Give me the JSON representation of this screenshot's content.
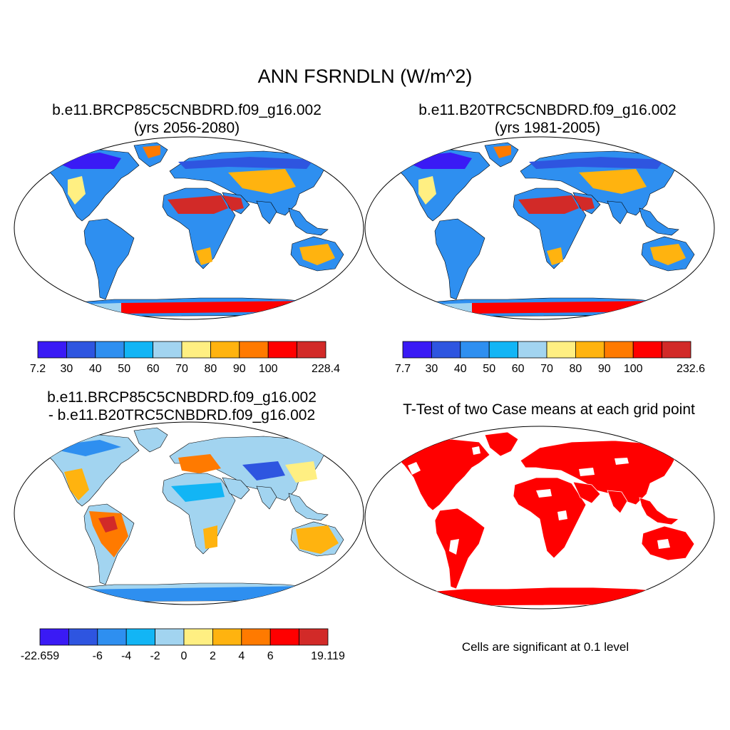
{
  "title": "ANN FSRNDLN (W/m^2)",
  "panels": [
    {
      "id": "p1",
      "title_line1": "b.e11.BRCP85C5CNBDRD.f09_g16.002",
      "title_line2": "(yrs 2056-2080)",
      "colorbar_labels": [
        "7.2",
        "30",
        "40",
        "50",
        "60",
        "70",
        "80",
        "90",
        "100",
        "228.4"
      ]
    },
    {
      "id": "p2",
      "title_line1": "b.e11.B20TRC5CNBDRD.f09_g16.002",
      "title_line2": "(yrs 1981-2005)",
      "colorbar_labels": [
        "7.7",
        "30",
        "40",
        "50",
        "60",
        "70",
        "80",
        "90",
        "100",
        "232.6"
      ]
    },
    {
      "id": "p3",
      "title_line1": "b.e11.BRCP85C5CNBDRD.f09_g16.002",
      "title_line2": "- b.e11.B20TRC5CNBDRD.f09_g16.002",
      "colorbar_labels": [
        "-22.659",
        "-6",
        "-4",
        "-2",
        "0",
        "2",
        "4",
        "6",
        "19.119"
      ]
    },
    {
      "id": "p4",
      "title_line1": "T-Test of two Case means at each grid point",
      "note": "Cells are significant at 0.1 level"
    }
  ],
  "colorbar_colors": [
    "#3a1af5",
    "#2e55e0",
    "#2e8ff0",
    "#12b5f5",
    "#a2d4f0",
    "#ffef82",
    "#ffb30f",
    "#ff7a00",
    "#ff0000",
    "#d22a28"
  ],
  "significance_color": "#ff0000"
}
